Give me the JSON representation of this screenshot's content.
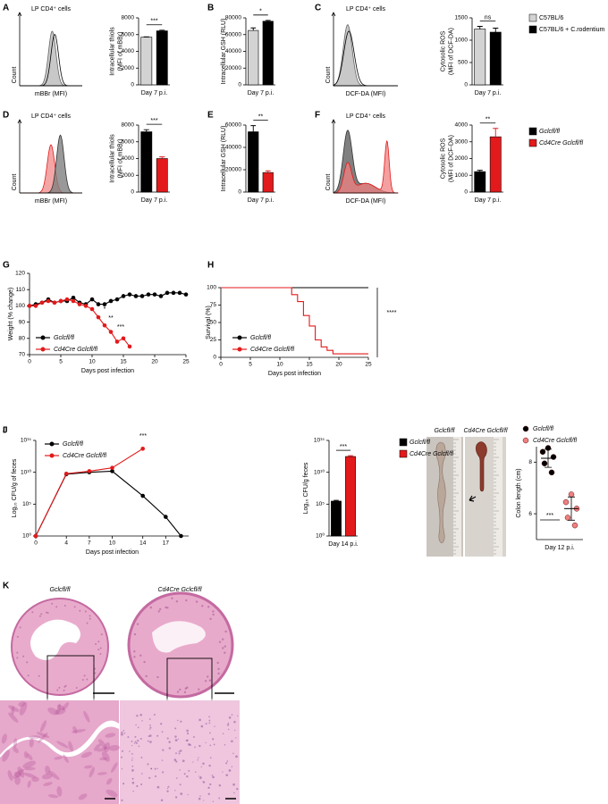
{
  "chart_data": [
    {
      "type": "flow",
      "panel": "A",
      "title": "LP CD4⁺ cells",
      "x_label": "mBBr (MFI)",
      "y_label": "Count"
    },
    {
      "type": "bar",
      "y_label": [
        "Intracellular thiols",
        "(MFI of mBBr)"
      ],
      "x_label": "Day 7 p.i.",
      "series": [
        {
          "color": "#d3d3d3",
          "values": [
            5700
          ],
          "errors": [
            40
          ]
        },
        {
          "color": "#000000",
          "values": [
            6450
          ],
          "errors": [
            80
          ]
        }
      ],
      "ylim": [
        0,
        8000
      ],
      "yticks": [
        0,
        2000,
        4000,
        6000,
        8000
      ],
      "significance": "***"
    },
    {
      "type": "bar",
      "panel": "B",
      "y_label": [
        "Intracellular GSH (RLU)"
      ],
      "x_label": "Day 7 p.i.",
      "series": [
        {
          "color": "#d3d3d3",
          "values": [
            65000
          ],
          "errors": [
            3000
          ]
        },
        {
          "color": "#000000",
          "values": [
            76000
          ],
          "errors": [
            1000
          ]
        }
      ],
      "ylim": [
        0,
        80000
      ],
      "yticks": [
        0,
        20000,
        40000,
        60000,
        80000
      ],
      "significance": "*"
    },
    {
      "type": "flow",
      "panel": "C",
      "title": "LP CD4⁺ cells",
      "x_label": "DCF-DA (MFI)",
      "y_label": "Count"
    },
    {
      "type": "bar",
      "y_label": [
        "Cytosolic ROS",
        "(MFI of DCF-DA)"
      ],
      "x_label": "Day 7 p.i.",
      "series": [
        {
          "name": "C57BL/6",
          "color": "#d3d3d3",
          "values": [
            1250
          ],
          "errors": [
            60
          ]
        },
        {
          "name": "C57BL/6 + C.rodentium",
          "color": "#000000",
          "values": [
            1180
          ],
          "errors": [
            90
          ]
        }
      ],
      "ylim": [
        0,
        1500
      ],
      "yticks": [
        0,
        500,
        1000,
        1500
      ],
      "significance": "ns"
    },
    {
      "type": "flow",
      "panel": "D",
      "title": "LP CD4⁺ cells",
      "x_label": "mBBr (MFI)",
      "y_label": "Count"
    },
    {
      "type": "bar",
      "y_label": [
        "Intracellular thiols",
        "(MFI of mBBr)"
      ],
      "x_label": "Day 7 p.i.",
      "series": [
        {
          "color": "#000000",
          "values": [
            7200
          ],
          "errors": [
            250
          ]
        },
        {
          "color": "#e31a1c",
          "values": [
            4000
          ],
          "errors": [
            200
          ]
        }
      ],
      "ylim": [
        0,
        8000
      ],
      "yticks": [
        0,
        2000,
        4000,
        6000,
        8000
      ],
      "significance": "***"
    },
    {
      "type": "bar",
      "panel": "E",
      "y_label": [
        "Intracellular GSH (RLU)"
      ],
      "x_label": "Day 7 p.i.",
      "series": [
        {
          "color": "#000000",
          "values": [
            54000
          ],
          "errors": [
            5500
          ]
        },
        {
          "color": "#e31a1c",
          "values": [
            17500
          ],
          "errors": [
            1500
          ]
        }
      ],
      "ylim": [
        0,
        60000
      ],
      "yticks": [
        0,
        20000,
        40000,
        60000
      ],
      "significance": "**"
    },
    {
      "type": "flow",
      "panel": "F",
      "title": "LP CD4⁺ cells",
      "x_label": "DCF-DA (MFI)",
      "y_label": "Count"
    },
    {
      "type": "bar",
      "y_label": [
        "Cytosolic ROS",
        "(MFI of DCF-DA)"
      ],
      "x_label": "Day 7 p.i.",
      "series": [
        {
          "name": "Gclcfl/fl",
          "color": "#000000",
          "values": [
            1220
          ],
          "errors": [
            80
          ]
        },
        {
          "name": "Cd4Cre Gclcfl/fl",
          "color": "#e31a1c",
          "values": [
            3300
          ],
          "errors": [
            500
          ]
        }
      ],
      "ylim": [
        0,
        4000
      ],
      "yticks": [
        0,
        1000,
        2000,
        3000,
        4000
      ],
      "significance": "**"
    },
    {
      "type": "line",
      "panel": "G",
      "y_label": [
        "Weight (% change)"
      ],
      "x_label": "Days post infection",
      "markers": true,
      "series": [
        {
          "name": "Gclcfl/fl",
          "color": "#000000",
          "x": [
            0,
            1,
            2,
            3,
            4,
            5,
            6,
            7,
            8,
            9,
            10,
            11,
            12,
            13,
            14,
            15,
            16,
            17,
            18,
            19,
            20,
            21,
            22,
            23,
            24,
            25
          ],
          "values": [
            100,
            101,
            102,
            104,
            102,
            103,
            103,
            105,
            102,
            101,
            104,
            101,
            101,
            103,
            104,
            106,
            107,
            106,
            106,
            107,
            107,
            106,
            108,
            108,
            108,
            107
          ]
        },
        {
          "name": "Cd4Cre Gclcfl/fl",
          "color": "#e31a1c",
          "x": [
            0,
            1,
            2,
            3,
            4,
            5,
            6,
            7,
            8,
            9,
            10,
            11,
            12,
            13,
            14,
            15,
            16
          ],
          "values": [
            100,
            100,
            102,
            103,
            102,
            103,
            104,
            103,
            101,
            100,
            98,
            93,
            88,
            84,
            78,
            80,
            75
          ]
        }
      ],
      "xlim": [
        0,
        25
      ],
      "xticks": [
        0,
        5,
        10,
        15,
        20,
        25
      ],
      "ylim": [
        70,
        120
      ],
      "yticks": [
        70,
        80,
        90,
        100,
        110,
        120
      ],
      "annotations": [
        "*",
        "**",
        "***"
      ]
    },
    {
      "type": "line",
      "panel": "H",
      "y_label": [
        "Survival (%)"
      ],
      "x_label": "Days post infection",
      "step": true,
      "series": [
        {
          "name": "Gclcfl/fl",
          "color": "#000000",
          "x": [
            0,
            25
          ],
          "values": [
            100,
            100
          ]
        },
        {
          "name": "Cd4Cre Gclcfl/fl",
          "color": "#e31a1c",
          "x": [
            0,
            12,
            13,
            14,
            15,
            16,
            17,
            18,
            19,
            25
          ],
          "values": [
            100,
            90,
            80,
            60,
            45,
            25,
            15,
            10,
            5,
            5
          ]
        }
      ],
      "xlim": [
        0,
        25
      ],
      "xticks": [
        0,
        5,
        10,
        15,
        20,
        25
      ],
      "ylim": [
        0,
        100
      ],
      "yticks": [
        0,
        25,
        50,
        75,
        100
      ],
      "significance": "****"
    },
    {
      "type": "line",
      "panel": "I",
      "y_label": [
        "Log₁₀ CFU/g of  feces"
      ],
      "x_label": "Days post infection",
      "markers": true,
      "ylog": true,
      "x": [
        0,
        4,
        7,
        10,
        14,
        17,
        19
      ],
      "series": [
        {
          "name": "Gclcfl/fl",
          "color": "#000000",
          "values": [
            1,
            5000000000,
            10000000000,
            15000000000,
            2000000,
            1000,
            1
          ]
        },
        {
          "name": "Cd4Cre Gclcfl/fl",
          "color": "#e31a1c",
          "values": [
            1,
            6000000000,
            15000000000,
            50000000000,
            50000000000000,
            null,
            null
          ]
        }
      ],
      "xlim": [
        0,
        20
      ],
      "xticks": [
        0,
        4,
        7,
        10,
        14,
        17
      ],
      "ylim": [
        1,
        1000000000000000
      ],
      "yticks": [
        {
          "value": 1,
          "label": "10⁰"
        },
        {
          "value": 100000,
          "label": "10⁵"
        },
        {
          "value": 10000000000,
          "label": "10¹⁰"
        },
        {
          "value": 1000000000000000,
          "label": "10¹⁵"
        }
      ],
      "significance": "***"
    },
    {
      "type": "bar",
      "y_label": [
        "Log₁₀ CFU/g feces"
      ],
      "x_label": "Day 14 p.i.",
      "ylog": true,
      "series": [
        {
          "name": "Gclcfl/fl",
          "color": "#000000",
          "values": [
            300000
          ],
          "errors": [
            100000
          ]
        },
        {
          "name": "Cd4Cre Gclcfl/fl",
          "color": "#e31a1c",
          "values": [
            3000000000000
          ],
          "errors": [
            1000000000000
          ]
        }
      ],
      "ylim": [
        1,
        1000000000000000
      ],
      "yticks": [
        {
          "value": 1,
          "label": "10⁰"
        },
        {
          "value": 100000,
          "label": "10⁵"
        },
        {
          "value": 10000000000,
          "label": "10¹⁰"
        },
        {
          "value": 1000000000000000,
          "label": "10¹⁵"
        }
      ],
      "significance": "***"
    },
    {
      "type": "scatter",
      "y_label": [
        "Colon length (cm)"
      ],
      "x_label": "Day 12 p.i.",
      "series": [
        {
          "name": "Gclcfl/fl",
          "color": "#000000",
          "values": [
            8.55,
            8.4,
            8.2,
            7.95,
            7.6
          ],
          "mean": 8.15,
          "sd": 0.35
        },
        {
          "name": "Cd4Cre Gclcfl/fl",
          "color": "#f08080",
          "values": [
            6.75,
            6.45,
            6.2,
            5.85,
            5.55
          ],
          "mean": 6.2,
          "sd": 0.45
        }
      ],
      "ylim": [
        5,
        8.6
      ],
      "yticks": [
        6,
        8
      ],
      "significance": "***"
    }
  ],
  "figure": {
    "J": {
      "panel": "J",
      "labels": [
        "Gclcfl/fl",
        "Cd4Cre Gclcfl/fl"
      ]
    },
    "K": {
      "panel": "K",
      "labels": [
        "Gclcfl/fl",
        "Cd4Cre Gclcfl/fl"
      ]
    }
  }
}
